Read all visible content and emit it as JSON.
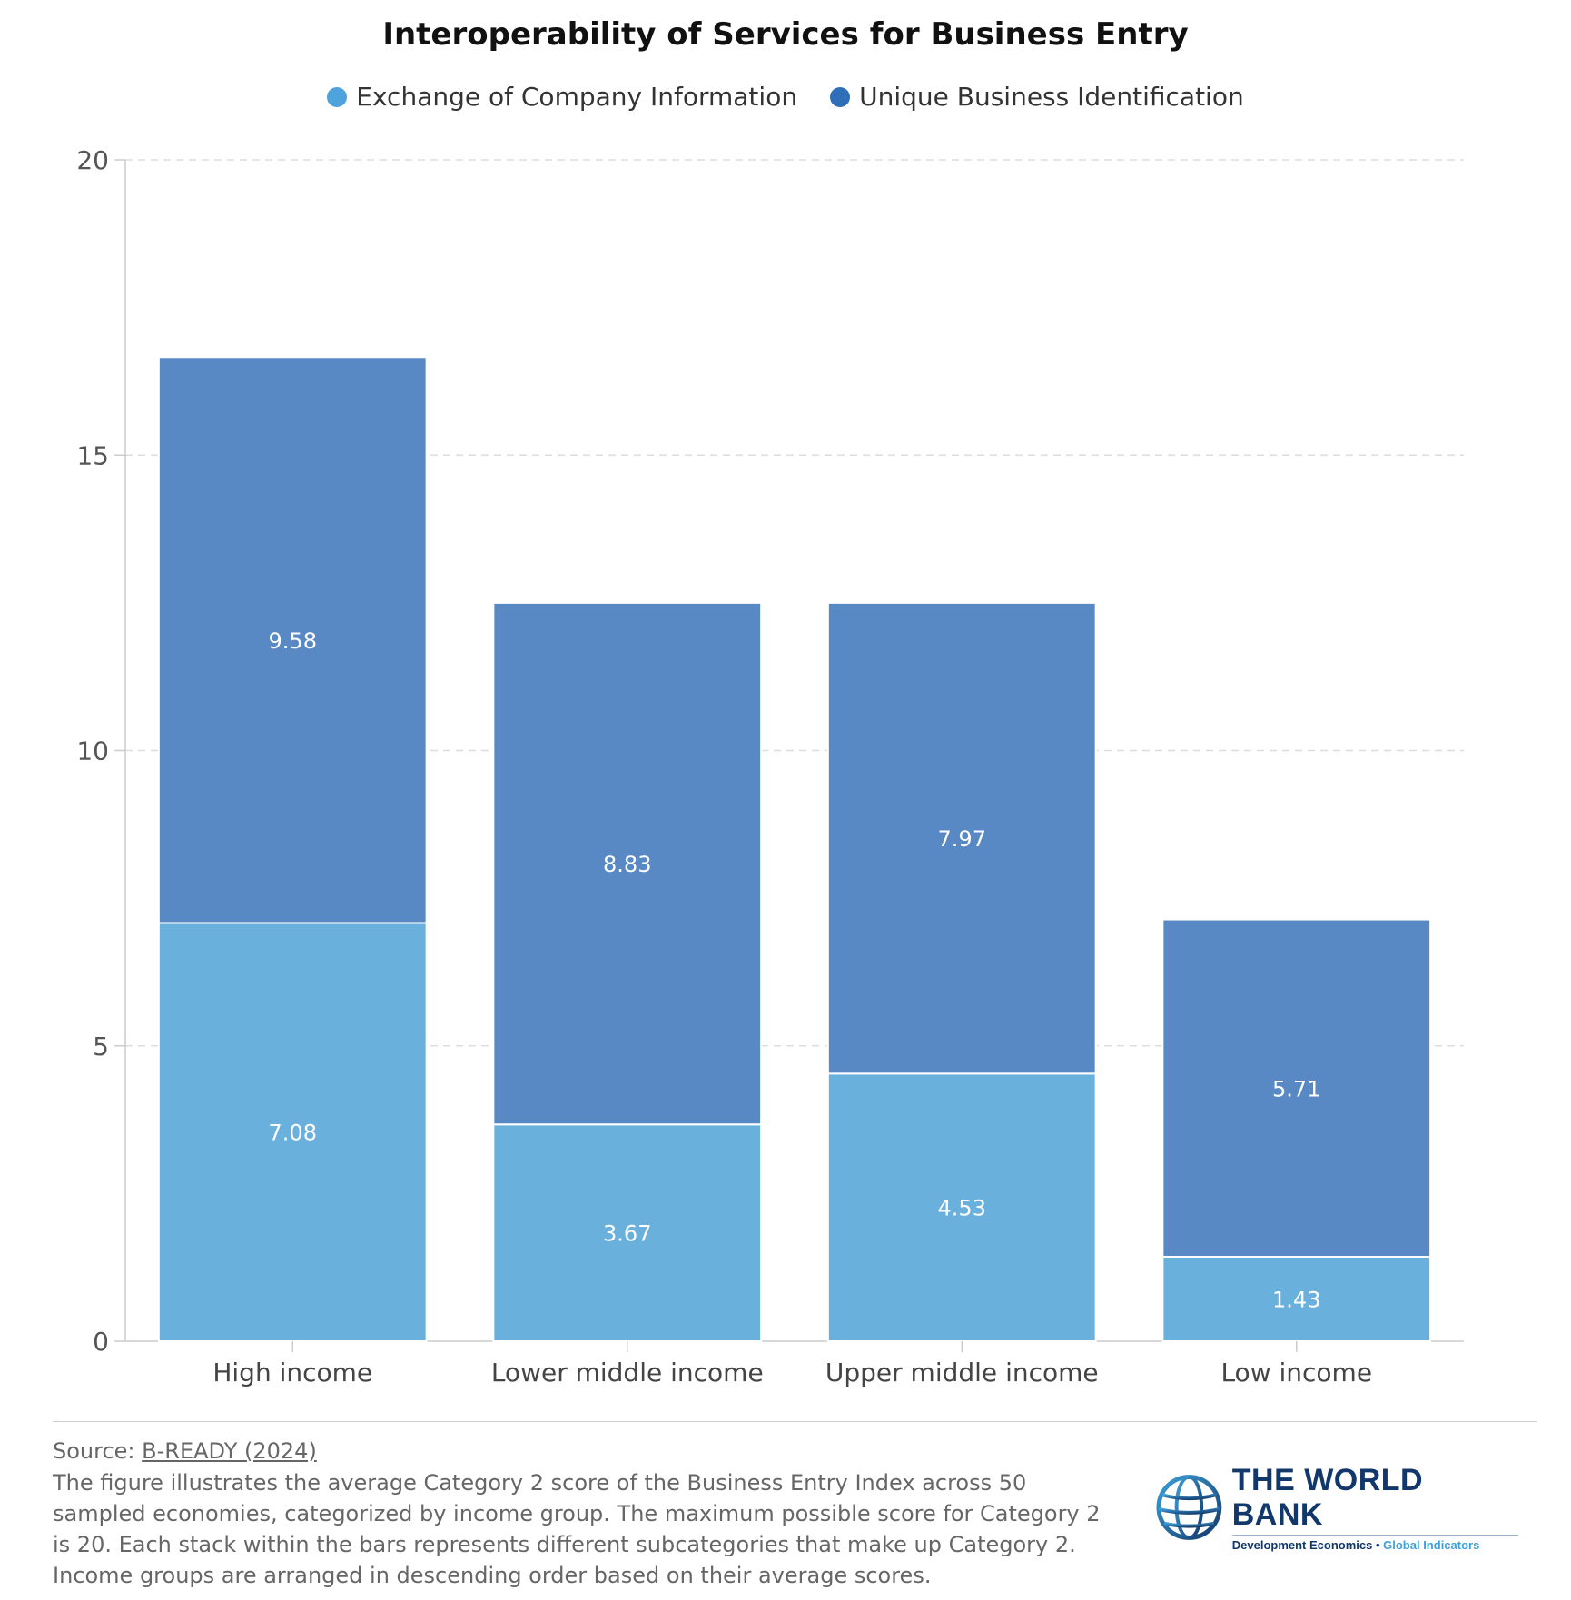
{
  "chart_data": {
    "type": "bar",
    "stacked": true,
    "title": "Interoperability of Services for Business Entry",
    "categories": [
      "High income",
      "Lower middle income",
      "Upper middle income",
      "Low income"
    ],
    "series": [
      {
        "name": "Exchange of Company Information",
        "color": "#6ab0dd",
        "legend_color": "#4fa3dc",
        "values": [
          7.08,
          3.67,
          4.53,
          1.43
        ]
      },
      {
        "name": "Unique Business Identification",
        "color": "#5889c4",
        "legend_color": "#2f6fba",
        "values": [
          9.58,
          8.83,
          7.97,
          5.71
        ]
      }
    ],
    "ylim": [
      0,
      20
    ],
    "yticks": [
      "0",
      "5",
      "10",
      "15",
      "20"
    ],
    "grid": true,
    "legend": "top-center",
    "data_labels": true
  },
  "footer": {
    "source_label": "Source: ",
    "source_link": "B-READY (2024)",
    "description": "The figure illustrates the average Category 2 score of the Business Entry Index across 50 sampled economies, categorized by income group. The maximum possible score for Category 2 is 20. Each stack within the bars represents different subcategories that make up Category 2. Income groups are arranged in descending order based on their average scores."
  },
  "logo": {
    "title": "THE WORLD BANK",
    "subtitle_main": "Development Economics",
    "subtitle_sep": " • ",
    "subtitle_accent": "Global Indicators",
    "icon": "globe-icon"
  }
}
